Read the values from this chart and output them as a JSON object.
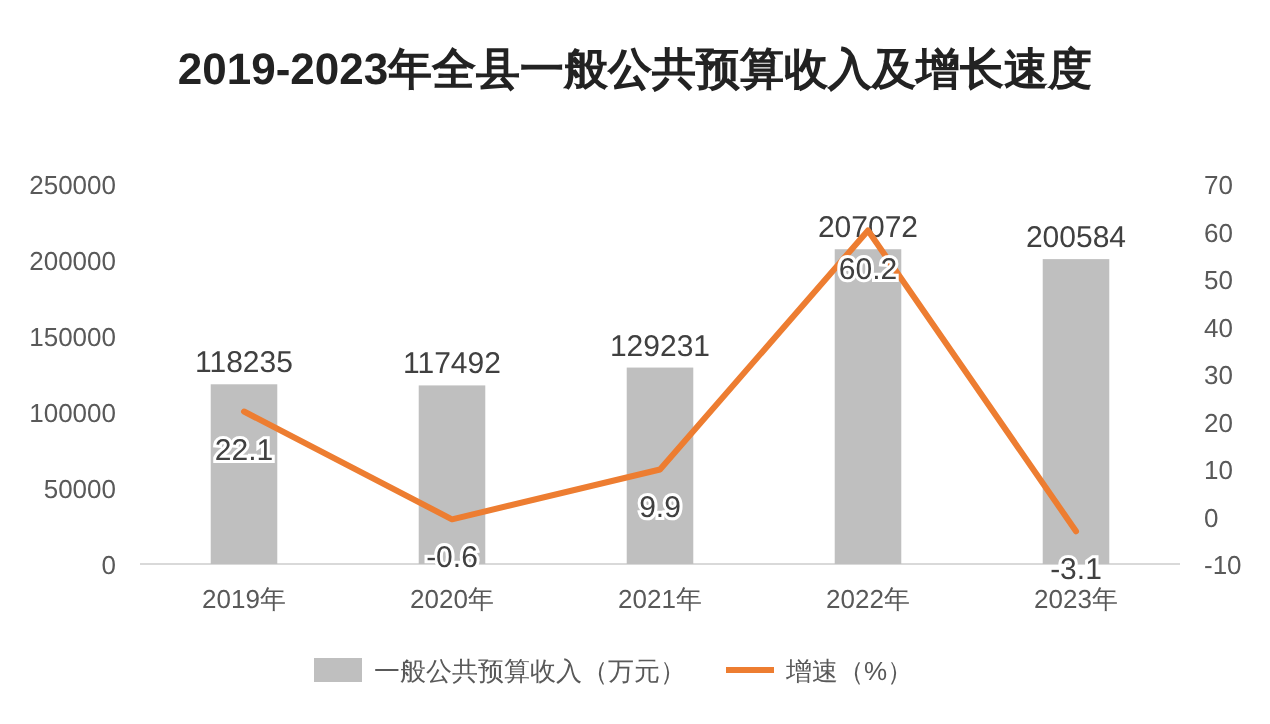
{
  "chart_data": {
    "type": "bar",
    "title": "2019-2023年全县一般公共预算收入及增长速度",
    "categories": [
      "2019年",
      "2020年",
      "2021年",
      "2022年",
      "2023年"
    ],
    "series": [
      {
        "name": "一般公共预算收入（万元）",
        "color": "#bfbfbf",
        "values": [
          118235,
          117492,
          129231,
          207072,
          200584
        ]
      },
      {
        "name": "增速（%）",
        "type": "line",
        "axis": "y2",
        "color": "#ed7d31",
        "values": [
          22.1,
          -0.6,
          9.9,
          60.2,
          -3.1
        ]
      }
    ],
    "ylim": [
      0,
      250000
    ],
    "yticks": [
      0,
      50000,
      100000,
      150000,
      200000,
      250000
    ],
    "y2lim": [
      -10,
      70
    ],
    "y2ticks": [
      -10,
      0,
      10,
      20,
      30,
      40,
      50,
      60,
      70
    ],
    "data_labels": true,
    "legend": "bottom",
    "grid": false,
    "marker": "none",
    "line_style": "solid"
  }
}
